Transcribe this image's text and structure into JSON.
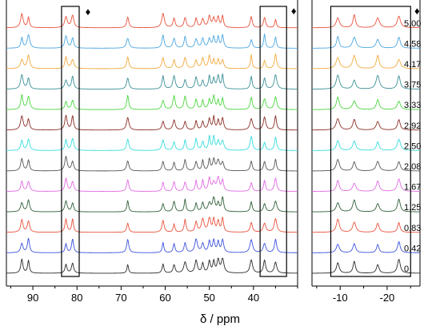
{
  "chart_data": {
    "type": "line",
    "xlabel": "δ / ppm",
    "ylabel": "",
    "panels": [
      {
        "name": "main",
        "xlim": [
          96,
          30
        ],
        "xticks": [
          90,
          80,
          70,
          60,
          50,
          40
        ],
        "xtick_labels": [
          "90",
          "80",
          "70",
          "60",
          "50",
          "40"
        ],
        "highlight_regions": [
          [
            83.5,
            79.5
          ],
          [
            38.5,
            32.5
          ]
        ]
      },
      {
        "name": "inset",
        "xlim": [
          -4,
          -27
        ],
        "xticks": [
          -10,
          -20
        ],
        "xtick_labels": [
          "-10",
          "-20"
        ],
        "highlight_regions": [
          [
            -8,
            -25
          ]
        ]
      }
    ],
    "markers": [
      "♦",
      "♦",
      "♦"
    ],
    "series": [
      {
        "name": "5.00",
        "color": "#e8513b"
      },
      {
        "name": "4.58",
        "color": "#4ba6e0"
      },
      {
        "name": "4.17",
        "color": "#f0a93c"
      },
      {
        "name": "3.75",
        "color": "#3a8f96"
      },
      {
        "name": "3.33",
        "color": "#49d53c"
      },
      {
        "name": "2.92",
        "color": "#8a2d25"
      },
      {
        "name": "2.50",
        "color": "#36dcdc"
      },
      {
        "name": "2.08",
        "color": "#555555"
      },
      {
        "name": "1.67",
        "color": "#e069e3"
      },
      {
        "name": "1.25",
        "color": "#2e5e38"
      },
      {
        "name": "0.83",
        "color": "#e8513b"
      },
      {
        "name": "0.42",
        "color": "#3a50dc"
      },
      {
        "name": "0",
        "color": "#2a2a2a"
      }
    ],
    "peaks_main": [
      92.5,
      91,
      82.5,
      81,
      68.5,
      60.5,
      58,
      55.5,
      53,
      51.5,
      50,
      49,
      48,
      47,
      40.5,
      37.5,
      35
    ],
    "peaks_inset": [
      -9.5,
      -13,
      -18,
      -22.5
    ]
  }
}
